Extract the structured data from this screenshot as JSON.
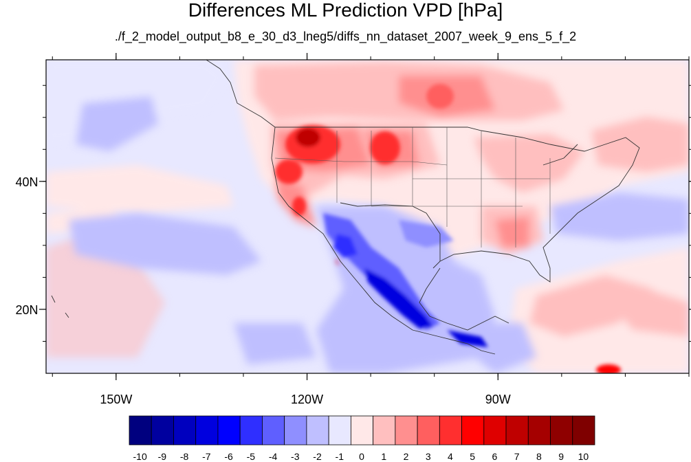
{
  "title": "Differences ML Prediction VPD [hPa]",
  "subtitle": "./f_2_model_output_b8_e_30_d3_lneg5/diffs_nn_dataset_2007_week_9_ens_5_f_2",
  "map": {
    "lon_range": [
      -161,
      -60
    ],
    "lat_range": [
      10,
      59
    ],
    "lon_ticks": [
      {
        "lon": -150,
        "label": "150W"
      },
      {
        "lon": -120,
        "label": "120W"
      },
      {
        "lon": -90,
        "label": "90W"
      }
    ],
    "lat_ticks": [
      {
        "lat": 40,
        "label": "40N"
      },
      {
        "lat": 20,
        "label": "20N"
      }
    ]
  },
  "colorbar": {
    "colors": [
      "#00007f",
      "#00009f",
      "#0000bf",
      "#0000df",
      "#0000ff",
      "#2f2fff",
      "#5f5fff",
      "#8f8fff",
      "#bfbfff",
      "#e8e8ff",
      "#ffe8e8",
      "#ffbfbf",
      "#ff8f8f",
      "#ff5f5f",
      "#ff2f2f",
      "#ff0000",
      "#df0000",
      "#bf0000",
      "#a50000",
      "#8f0000",
      "#7f0000"
    ],
    "labels": [
      "-10",
      "-9",
      "-8",
      "-7",
      "-6",
      "-5",
      "-4",
      "-3",
      "-2",
      "-1",
      "0",
      "1",
      "2",
      "3",
      "4",
      "5",
      "6",
      "7",
      "8",
      "9",
      "10"
    ]
  }
}
